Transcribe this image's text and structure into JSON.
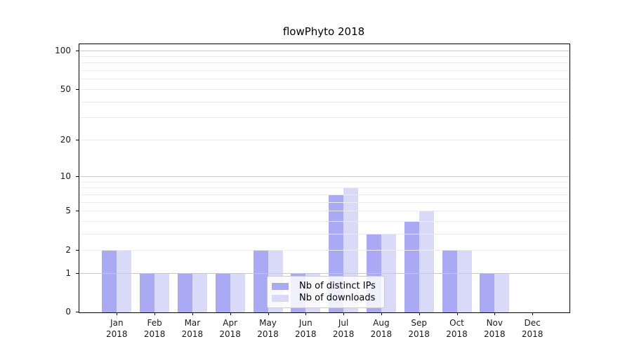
{
  "chart_data": {
    "type": "bar",
    "title": "flowPhyto 2018",
    "categories": [
      "Jan 2018",
      "Feb 2018",
      "Mar 2018",
      "Apr 2018",
      "May 2018",
      "Jun 2018",
      "Jul 2018",
      "Aug 2018",
      "Sep 2018",
      "Oct 2018",
      "Nov 2018",
      "Dec 2018"
    ],
    "category_months": [
      "Jan",
      "Feb",
      "Mar",
      "Apr",
      "May",
      "Jun",
      "Jul",
      "Aug",
      "Sep",
      "Oct",
      "Nov",
      "Dec"
    ],
    "category_year": "2018",
    "series": [
      {
        "name": "Nb of distinct IPs",
        "color": "#a9a9f4",
        "values": [
          2,
          1,
          1,
          1,
          2,
          1,
          7,
          3,
          4,
          2,
          1,
          0
        ]
      },
      {
        "name": "Nb of downloads",
        "color": "#d9d9f8",
        "values": [
          2,
          1,
          1,
          1,
          2,
          1,
          8,
          3,
          5,
          2,
          1,
          0
        ]
      }
    ],
    "xlabel": "",
    "ylabel": "",
    "yscale": "log10(1+x)",
    "ylim": [
      0,
      111
    ],
    "yticks": [
      0,
      1,
      2,
      5,
      10,
      20,
      50,
      100
    ],
    "grid_major": [
      1,
      10,
      100
    ],
    "grid_minor": [
      2,
      3,
      4,
      5,
      6,
      7,
      8,
      9,
      20,
      30,
      40,
      50,
      60,
      70,
      80,
      90
    ],
    "grid": true,
    "legend_position": "lower center",
    "colors": {
      "grid_major": "#c9c9c9",
      "grid_minor": "#ececec",
      "axis": "#000000",
      "text": "#1a1a1a",
      "background": "#ffffff"
    }
  }
}
